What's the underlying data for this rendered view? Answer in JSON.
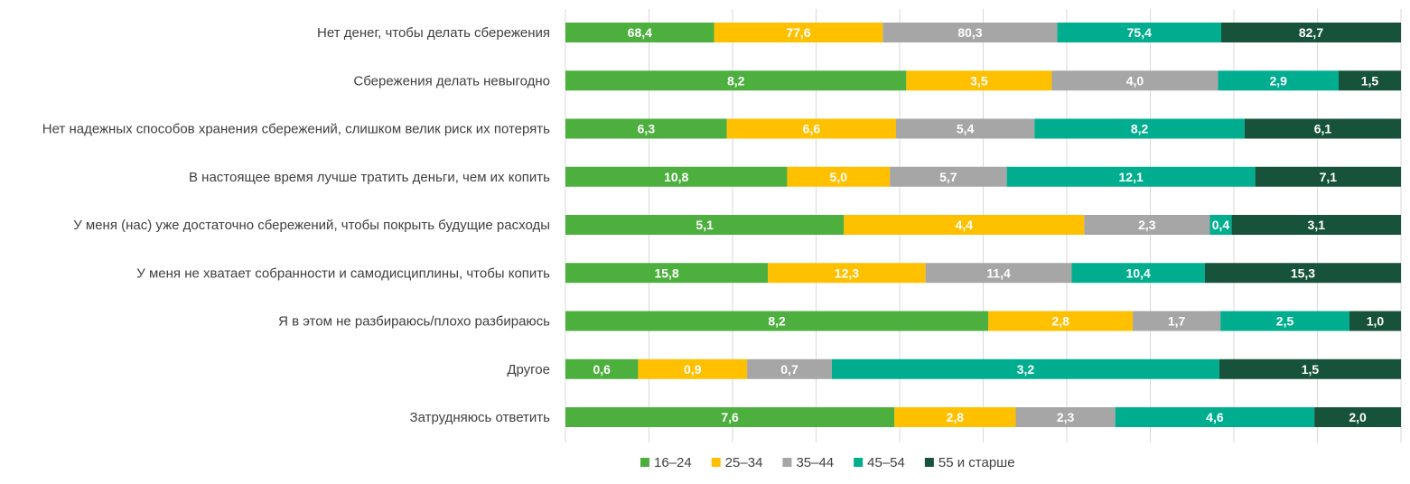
{
  "chart_data": {
    "type": "bar",
    "orientation": "horizontal",
    "stacked": "percent",
    "grid": true,
    "legend_position": "bottom",
    "categories": [
      "Нет денег, чтобы делать сбережения",
      "Сбережения делать невыгодно",
      "Нет надежных способов хранения сбережений, слишком велик риск их потерять",
      "В настоящее время лучше тратить деньги, чем их копить",
      "У меня (нас) уже достаточно сбережений, чтобы покрыть будущие расходы",
      "У меня не хватает собранности и самодисциплины, чтобы копить",
      "Я в этом не разбираюсь/плохо разбираюсь",
      "Другое",
      "Затрудняюсь ответить"
    ],
    "series": [
      {
        "name": "16–24",
        "color": "#4caf3e",
        "values": [
          68.4,
          8.2,
          6.3,
          10.8,
          5.1,
          15.8,
          8.2,
          0.6,
          7.6
        ],
        "labels": [
          "68,4",
          "8,2",
          "6,3",
          "10,8",
          "5,1",
          "15,8",
          "8,2",
          "0,6",
          "7,6"
        ]
      },
      {
        "name": "25–34",
        "color": "#ffc000",
        "values": [
          77.6,
          3.5,
          6.6,
          5.0,
          4.4,
          12.3,
          2.8,
          0.9,
          2.8
        ],
        "labels": [
          "77,6",
          "3,5",
          "6,6",
          "5,0",
          "4,4",
          "12,3",
          "2,8",
          "0,9",
          "2,8"
        ]
      },
      {
        "name": "35–44",
        "color": "#a6a6a6",
        "values": [
          80.3,
          4.0,
          5.4,
          5.7,
          2.3,
          11.4,
          1.7,
          0.7,
          2.3
        ],
        "labels": [
          "80,3",
          "4,0",
          "5,4",
          "5,7",
          "2,3",
          "11,4",
          "1,7",
          "0,7",
          "2,3"
        ]
      },
      {
        "name": "45–54",
        "color": "#00ae8f",
        "values": [
          75.4,
          2.9,
          8.2,
          12.1,
          0.4,
          10.4,
          2.5,
          3.2,
          4.6
        ],
        "labels": [
          "75,4",
          "2,9",
          "8,2",
          "12,1",
          "0,4",
          "10,4",
          "2,5",
          "3,2",
          "4,6"
        ]
      },
      {
        "name": "55 и старше",
        "color": "#17533a",
        "values": [
          82.7,
          1.5,
          6.1,
          7.1,
          3.1,
          15.3,
          1.0,
          1.5,
          2.0
        ],
        "labels": [
          "82,7",
          "1,5",
          "6,1",
          "7,1",
          "3,1",
          "15,3",
          "1,0",
          "1,5",
          "2,0"
        ]
      }
    ]
  }
}
